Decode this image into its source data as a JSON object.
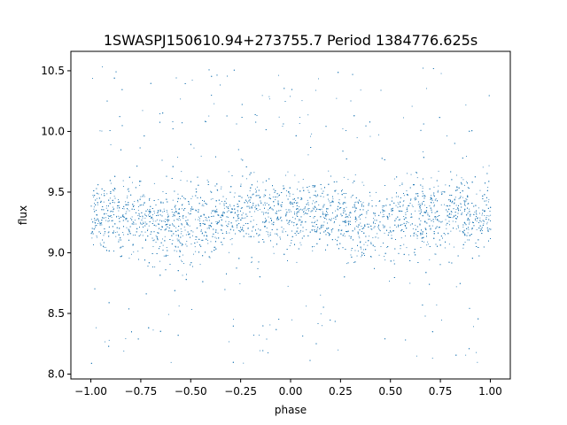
{
  "chart_data": {
    "type": "scatter",
    "title": "1SWASPJ150610.94+273755.7 Period 1384776.625s",
    "xlabel": "phase",
    "ylabel": "flux",
    "xlim": [
      -1.1,
      1.1
    ],
    "ylim": [
      7.96,
      10.66
    ],
    "x_ticks": [
      -1.0,
      -0.75,
      -0.5,
      -0.25,
      0.0,
      0.25,
      0.5,
      0.75,
      1.0
    ],
    "x_tick_labels": [
      "−1.00",
      "−0.75",
      "−0.50",
      "−0.25",
      "0.00",
      "0.25",
      "0.50",
      "0.75",
      "1.00"
    ],
    "y_ticks": [
      8.0,
      8.5,
      9.0,
      9.5,
      10.0,
      10.5
    ],
    "y_tick_labels": [
      "8.0",
      "8.5",
      "9.0",
      "9.5",
      "10.0",
      "10.5"
    ],
    "grid": false,
    "legend": "none",
    "point_color": "#1f77b4",
    "series": [
      {
        "phase_range": [
          -1.0,
          1.0
        ],
        "flux_profile": {
          "phase": [
            -1.0,
            -0.75,
            -0.6,
            -0.5,
            -0.35,
            -0.25,
            -0.1,
            0.0,
            0.1,
            0.25,
            0.35,
            0.5,
            0.6,
            0.75,
            0.9,
            1.0
          ],
          "median_flux": [
            9.33,
            9.3,
            9.22,
            9.24,
            9.3,
            9.35,
            9.33,
            9.32,
            9.33,
            9.3,
            9.22,
            9.26,
            9.3,
            9.35,
            9.33,
            9.33
          ],
          "core_spread": [
            0.4,
            0.42,
            0.45,
            0.45,
            0.42,
            0.4,
            0.4,
            0.38,
            0.4,
            0.42,
            0.45,
            0.45,
            0.42,
            0.4,
            0.4,
            0.4
          ]
        },
        "flux_range": [
          8.08,
          10.55
        ]
      }
    ]
  }
}
